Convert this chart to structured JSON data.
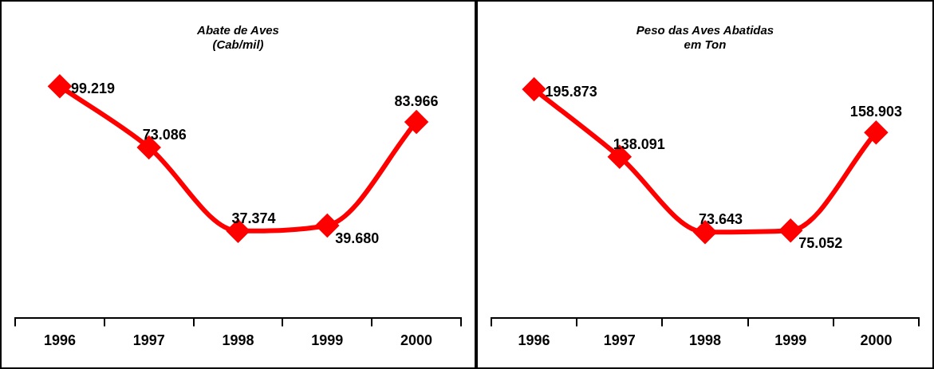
{
  "chart_data": [
    {
      "type": "line",
      "title": [
        "Abate de Aves",
        "(Cab/mil)"
      ],
      "categories": [
        "1996",
        "1997",
        "1998",
        "1999",
        "2000"
      ],
      "series": [
        {
          "color": "#ff0000",
          "values": [
            99219,
            73086,
            37374,
            39680,
            83966
          ],
          "value_labels": [
            "99.219",
            "73.086",
            "37.374",
            "39.680",
            "83.966"
          ]
        }
      ],
      "marker": "diamond",
      "line_style": "solid",
      "grid": false,
      "legend": false,
      "tick_labels": "x"
    },
    {
      "type": "line",
      "title": [
        "Peso das Aves Abatidas",
        "em Ton"
      ],
      "categories": [
        "1996",
        "1997",
        "1998",
        "1999",
        "2000"
      ],
      "series": [
        {
          "color": "#ff0000",
          "values": [
            195873,
            138091,
            73643,
            75052,
            158903
          ],
          "value_labels": [
            "195.873",
            "138.091",
            "73.643",
            "75.052",
            "158.903"
          ]
        }
      ],
      "marker": "diamond",
      "line_style": "solid",
      "grid": false,
      "legend": false,
      "tick_labels": "x"
    }
  ]
}
